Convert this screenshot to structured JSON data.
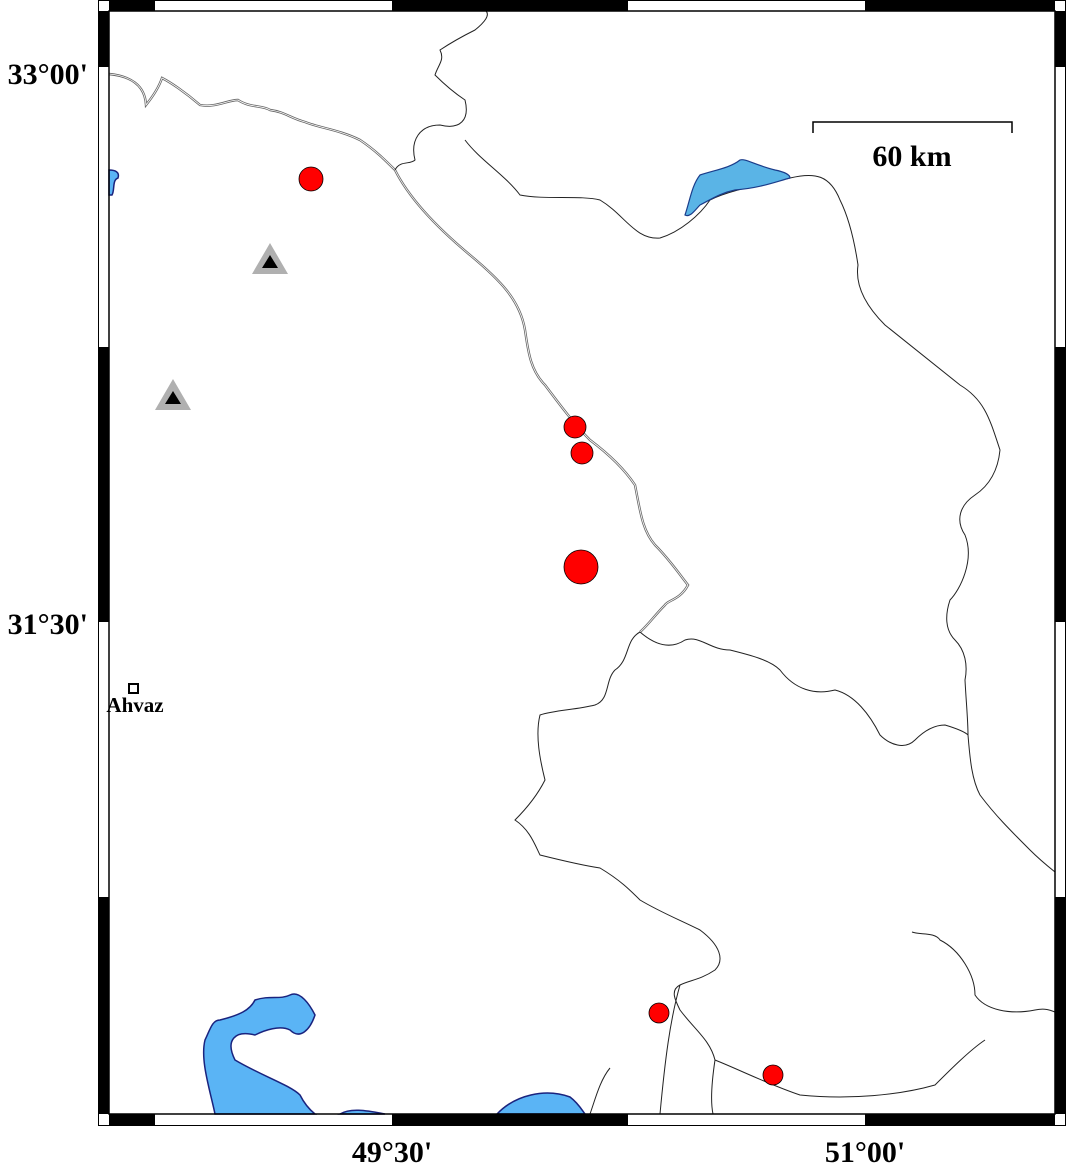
{
  "map": {
    "x_ticks": [
      "49°30'",
      "51°00'"
    ],
    "y_ticks": [
      "33°00'",
      "31°30'"
    ],
    "scale_bar": {
      "label": "60 km",
      "distance_km": 60
    },
    "cities": [
      {
        "name": "Ahvaz",
        "symbol": "square-icon"
      }
    ],
    "colors": {
      "water": "#5ab4f5",
      "event": "#ff0000",
      "station": "#b0b0b0",
      "frame": "#000000"
    },
    "events": [
      {
        "id": 1,
        "size": "medium"
      },
      {
        "id": 2,
        "size": "medium"
      },
      {
        "id": 3,
        "size": "medium"
      },
      {
        "id": 4,
        "size": "large"
      },
      {
        "id": 5,
        "size": "medium"
      },
      {
        "id": 6,
        "size": "medium"
      }
    ],
    "stations": [
      {
        "id": 1
      },
      {
        "id": 2
      }
    ]
  }
}
